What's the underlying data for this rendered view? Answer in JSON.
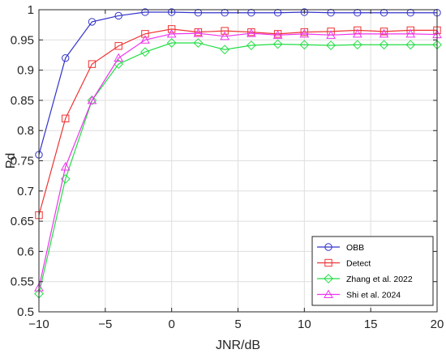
{
  "chart_data": {
    "type": "line",
    "xlabel": "JNR/dB",
    "ylabel": "Pd",
    "xlim": [
      -10,
      20
    ],
    "ylim": [
      0.5,
      1
    ],
    "x_ticks": [
      -10,
      -5,
      0,
      5,
      10,
      15,
      20
    ],
    "y_ticks": [
      0.5,
      0.55,
      0.6,
      0.65,
      0.7,
      0.75,
      0.8,
      0.85,
      0.9,
      0.95,
      1
    ],
    "x_tick_labels": [
      "−10",
      "−5",
      "0",
      "5",
      "10",
      "15",
      "20"
    ],
    "y_tick_labels": [
      "0.5",
      "0.55",
      "0.6",
      "0.65",
      "0.7",
      "0.75",
      "0.8",
      "0.85",
      "0.9",
      "0.95",
      "1"
    ],
    "grid": true,
    "legend_position": "bottom-right",
    "x": [
      -10,
      -8,
      -6,
      -4,
      -2,
      0,
      2,
      4,
      6,
      8,
      10,
      12,
      14,
      16,
      18,
      20
    ],
    "series": [
      {
        "name": "OBB",
        "color": "#3333cc",
        "marker": "circle",
        "values": [
          0.76,
          0.92,
          0.98,
          0.99,
          0.996,
          0.996,
          0.995,
          0.995,
          0.995,
          0.995,
          0.996,
          0.995,
          0.995,
          0.995,
          0.995,
          0.995
        ]
      },
      {
        "name": "Detect",
        "color": "#ee3333",
        "marker": "square",
        "values": [
          0.66,
          0.82,
          0.91,
          0.94,
          0.96,
          0.968,
          0.963,
          0.965,
          0.963,
          0.96,
          0.963,
          0.964,
          0.966,
          0.964,
          0.966,
          0.966
        ]
      },
      {
        "name": "Zhang et al. 2022",
        "color": "#22dd44",
        "marker": "diamond",
        "values": [
          0.53,
          0.72,
          0.85,
          0.91,
          0.93,
          0.945,
          0.945,
          0.934,
          0.941,
          0.943,
          0.942,
          0.941,
          0.942,
          0.942,
          0.942,
          0.942
        ]
      },
      {
        "name": "Shi et al. 2024",
        "color": "#ee33ee",
        "marker": "triangle",
        "values": [
          0.54,
          0.74,
          0.85,
          0.92,
          0.95,
          0.96,
          0.961,
          0.956,
          0.961,
          0.958,
          0.96,
          0.958,
          0.96,
          0.96,
          0.96,
          0.959
        ]
      }
    ]
  }
}
